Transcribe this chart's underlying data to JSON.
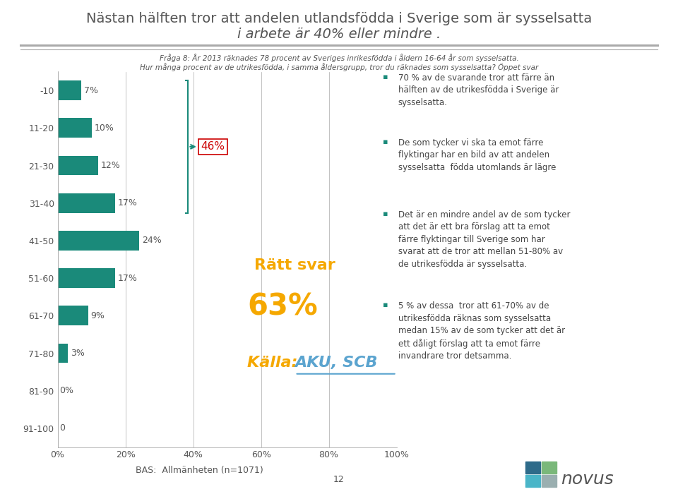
{
  "title_line1": "Nästan hälften tror att andelen utlandsfödda i Sverige som är sysselsatta",
  "title_line2": "i arbete är 40% eller mindre .",
  "subtitle_line1": "Fråga 8: År 2013 räknades 78 procent av Sveriges inrikesfödda i åldern 16-64 år som sysselsatta.",
  "subtitle_line2": "Hur många procent av de utrikesfödda, i samma åldersgrupp, tror du räknades som sysselsatta? Öppet svar",
  "categories": [
    "-10",
    "11-20",
    "21-30",
    "31-40",
    "41-50",
    "51-60",
    "61-70",
    "71-80",
    "81-90",
    "91-100"
  ],
  "values": [
    7,
    10,
    12,
    17,
    24,
    17,
    9,
    3,
    0,
    0
  ],
  "bar_color": "#1a8a7a",
  "bar_labels": [
    "7%",
    "10%",
    "12%",
    "17%",
    "24%",
    "17%",
    "9%",
    "3%",
    "0%",
    "0"
  ],
  "bracket_label": "46%",
  "bracket_color": "#1a8a7a",
  "bracket_label_color": "#cc0000",
  "ratt_svar_label": "Rätt svar",
  "ratt_svar_pct": "63%",
  "kalla_prefix": "Källa: ",
  "kalla_link": "AKU, SCB",
  "ratt_svar_color": "#f5a800",
  "kalla_prefix_color": "#f5a800",
  "kalla_color": "#5ba4cf",
  "bullet_color": "#1a8a7a",
  "bullet_texts": [
    "70 % av de svarande tror att färre än\nhälften av de utrikesfödda i Sverige är\nsysselsatta.",
    "De som tycker vi ska ta emot färre\nflyktingar har en bild av att andelen\nsysselsatta  födda utomlands är lägre",
    "Det är en mindre andel av de som tycker\natt det är ett bra förslag att ta emot\nfärre flyktingar till Sverige som har\nsvarat att de tror att mellan 51-80% av\nde utrikesfödda är sysselsatta.",
    "5 % av dessa  tror att 61-70% av de\nutrikesfödda räknas som sysselsatta\nmedan 15% av de som tycker att det är\nett dåligt förslag att ta emot färre\ninvandrare tror detsamma."
  ],
  "bas_text": "BAS:  Allmänheten (n=1071)",
  "page_number": "12",
  "background_color": "#ffffff",
  "title_color": "#555555",
  "subtitle_color": "#555555",
  "axis_color": "#aaaaaa",
  "tick_label_color": "#555555",
  "separator_color": "#aaaaaa",
  "logo_colors": [
    [
      "#2e6b8a",
      "#7ab87a"
    ],
    [
      "#4ab5c8",
      "#9aafb0"
    ]
  ],
  "logo_text": "novus",
  "logo_text_color": "#555555"
}
